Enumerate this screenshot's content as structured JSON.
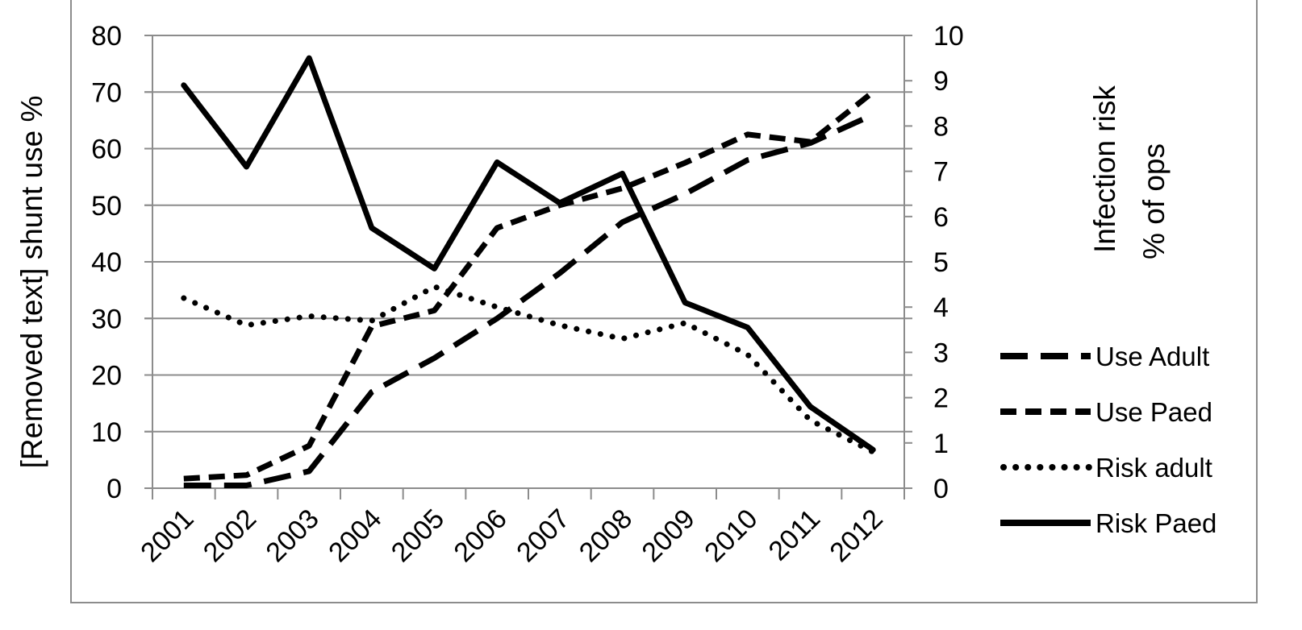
{
  "chart_data": {
    "type": "line",
    "categories": [
      "2001",
      "2002",
      "2003",
      "2004",
      "2005",
      "2006",
      "2007",
      "2008",
      "2009",
      "2010",
      "2011",
      "2012"
    ],
    "ylabel": "[Removed text] shunt use %",
    "y2label": [
      "Infection risk",
      "% of ops"
    ],
    "ylim": [
      0,
      80
    ],
    "yticks": [
      "0",
      "10",
      "20",
      "30",
      "40",
      "50",
      "60",
      "70",
      "80"
    ],
    "y2lim": [
      0,
      10
    ],
    "y2ticks": [
      "0",
      "1",
      "2",
      "3",
      "4",
      "5",
      "6",
      "7",
      "8",
      "9",
      "10"
    ],
    "grid": true,
    "legend_position": "right",
    "series": [
      {
        "name": "Use Adult",
        "axis": "left",
        "style": "long-dash",
        "color": "#000000",
        "values": [
          0.5,
          0.5,
          3,
          17,
          23,
          30,
          38,
          47,
          52,
          58,
          61,
          66
        ]
      },
      {
        "name": "Use Paed",
        "axis": "left",
        "style": "short-dash",
        "color": "#000000",
        "values": [
          1.7,
          2.3,
          7.5,
          28.6,
          31.4,
          46,
          50,
          53,
          57.5,
          62.5,
          61.2,
          70
        ]
      },
      {
        "name": "Risk adult",
        "axis": "right",
        "style": "dotted",
        "color": "#000000",
        "values": [
          4.2,
          3.6,
          3.8,
          3.7,
          4.45,
          4.0,
          3.6,
          3.3,
          3.65,
          2.95,
          1.5,
          0.8
        ]
      },
      {
        "name": "Risk Paed",
        "axis": "right",
        "style": "solid",
        "color": "#000000",
        "values": [
          8.9,
          7.1,
          9.5,
          5.75,
          4.85,
          7.2,
          6.3,
          6.95,
          4.1,
          3.55,
          1.8,
          0.85
        ]
      }
    ]
  }
}
